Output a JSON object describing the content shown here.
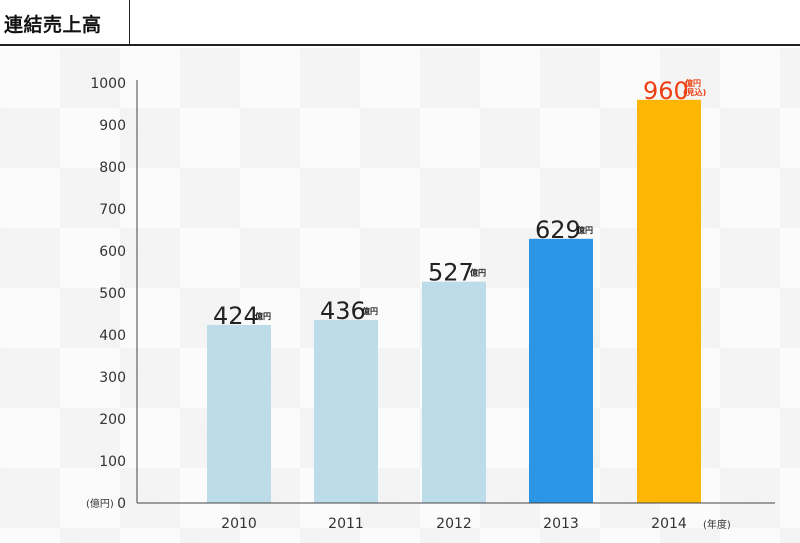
{
  "title": "連結売上高",
  "chart_data": {
    "type": "bar",
    "categories": [
      "2010",
      "2011",
      "2012",
      "2013",
      "2014"
    ],
    "values": [
      424,
      436,
      527,
      629,
      960
    ],
    "value_labels": [
      "424",
      "436",
      "527",
      "629",
      "960"
    ],
    "value_unit": "億円",
    "value_notes": [
      "",
      "",
      "",
      "",
      "(見込)"
    ],
    "bar_colors": [
      "#bcdcea",
      "#bcdcea",
      "#bcdcea",
      "#2c96e6",
      "#fdb603"
    ],
    "label_colors": [
      "#222222",
      "#222222",
      "#222222",
      "#222222",
      "#ee3f12"
    ],
    "y_ticks": [
      "0",
      "100",
      "200",
      "300",
      "400",
      "500",
      "600",
      "700",
      "800",
      "900",
      "1000"
    ],
    "ylim": [
      0,
      1000
    ],
    "ylabel": "(億円)",
    "xlabel": "(年度)",
    "grid": false
  }
}
